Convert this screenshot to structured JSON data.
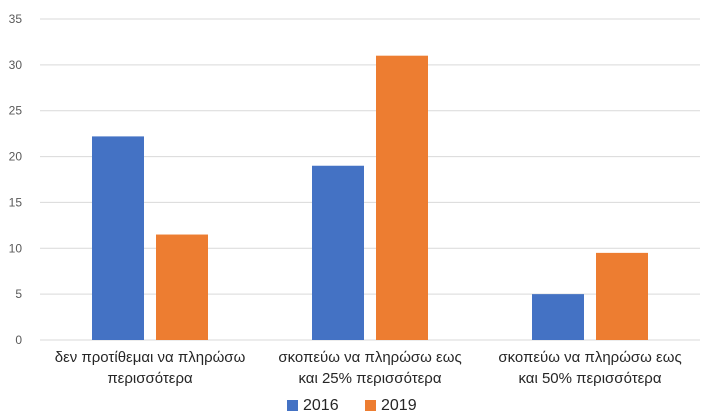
{
  "chart_data": {
    "type": "bar",
    "categories": [
      [
        "δεν προτίθεμαι να πληρώσω",
        "περισσότερα"
      ],
      [
        "σκοπεύω να πληρώσω εως",
        "και 25% περισσότερα"
      ],
      [
        "σκοπεύω να πληρώσω εως",
        "και 50% περισσότερα"
      ]
    ],
    "series": [
      {
        "name": "2016",
        "values": [
          22.2,
          19,
          5
        ],
        "color": "#4472c4"
      },
      {
        "name": "2019",
        "values": [
          11.5,
          31,
          9.5
        ],
        "color": "#ed7d31"
      }
    ],
    "ylim": [
      0,
      35
    ],
    "yticks": [
      "0",
      "5",
      "10",
      "15",
      "20",
      "25",
      "30",
      "35"
    ],
    "grid": true,
    "legend_position": "bottom"
  }
}
